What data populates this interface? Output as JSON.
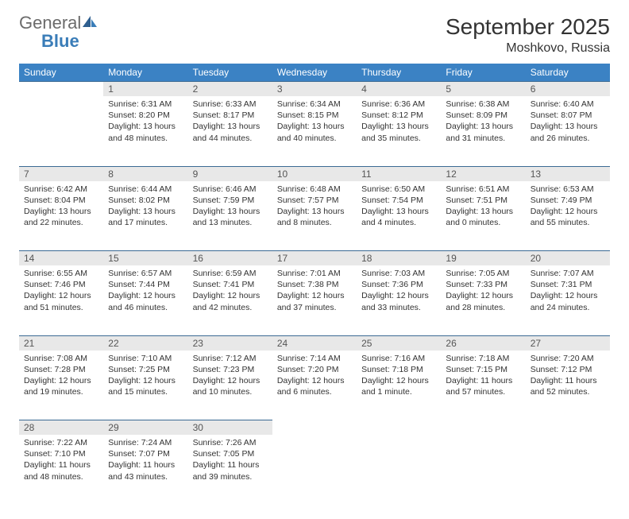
{
  "logo": {
    "general": "General",
    "blue": "Blue"
  },
  "title": "September 2025",
  "location": "Moshkovo, Russia",
  "dayNames": [
    "Sunday",
    "Monday",
    "Tuesday",
    "Wednesday",
    "Thursday",
    "Friday",
    "Saturday"
  ],
  "colors": {
    "header_bg": "#3b82c4",
    "header_text": "#ffffff",
    "daynum_bg": "#e8e8e8",
    "border": "#3b6a94",
    "logo_blue": "#3a7db8",
    "logo_gray": "#6b6b6b"
  },
  "weeks": [
    [
      {
        "n": "",
        "sr": "",
        "ss": "",
        "dl": ""
      },
      {
        "n": "1",
        "sr": "Sunrise: 6:31 AM",
        "ss": "Sunset: 8:20 PM",
        "dl": "Daylight: 13 hours and 48 minutes."
      },
      {
        "n": "2",
        "sr": "Sunrise: 6:33 AM",
        "ss": "Sunset: 8:17 PM",
        "dl": "Daylight: 13 hours and 44 minutes."
      },
      {
        "n": "3",
        "sr": "Sunrise: 6:34 AM",
        "ss": "Sunset: 8:15 PM",
        "dl": "Daylight: 13 hours and 40 minutes."
      },
      {
        "n": "4",
        "sr": "Sunrise: 6:36 AM",
        "ss": "Sunset: 8:12 PM",
        "dl": "Daylight: 13 hours and 35 minutes."
      },
      {
        "n": "5",
        "sr": "Sunrise: 6:38 AM",
        "ss": "Sunset: 8:09 PM",
        "dl": "Daylight: 13 hours and 31 minutes."
      },
      {
        "n": "6",
        "sr": "Sunrise: 6:40 AM",
        "ss": "Sunset: 8:07 PM",
        "dl": "Daylight: 13 hours and 26 minutes."
      }
    ],
    [
      {
        "n": "7",
        "sr": "Sunrise: 6:42 AM",
        "ss": "Sunset: 8:04 PM",
        "dl": "Daylight: 13 hours and 22 minutes."
      },
      {
        "n": "8",
        "sr": "Sunrise: 6:44 AM",
        "ss": "Sunset: 8:02 PM",
        "dl": "Daylight: 13 hours and 17 minutes."
      },
      {
        "n": "9",
        "sr": "Sunrise: 6:46 AM",
        "ss": "Sunset: 7:59 PM",
        "dl": "Daylight: 13 hours and 13 minutes."
      },
      {
        "n": "10",
        "sr": "Sunrise: 6:48 AM",
        "ss": "Sunset: 7:57 PM",
        "dl": "Daylight: 13 hours and 8 minutes."
      },
      {
        "n": "11",
        "sr": "Sunrise: 6:50 AM",
        "ss": "Sunset: 7:54 PM",
        "dl": "Daylight: 13 hours and 4 minutes."
      },
      {
        "n": "12",
        "sr": "Sunrise: 6:51 AM",
        "ss": "Sunset: 7:51 PM",
        "dl": "Daylight: 13 hours and 0 minutes."
      },
      {
        "n": "13",
        "sr": "Sunrise: 6:53 AM",
        "ss": "Sunset: 7:49 PM",
        "dl": "Daylight: 12 hours and 55 minutes."
      }
    ],
    [
      {
        "n": "14",
        "sr": "Sunrise: 6:55 AM",
        "ss": "Sunset: 7:46 PM",
        "dl": "Daylight: 12 hours and 51 minutes."
      },
      {
        "n": "15",
        "sr": "Sunrise: 6:57 AM",
        "ss": "Sunset: 7:44 PM",
        "dl": "Daylight: 12 hours and 46 minutes."
      },
      {
        "n": "16",
        "sr": "Sunrise: 6:59 AM",
        "ss": "Sunset: 7:41 PM",
        "dl": "Daylight: 12 hours and 42 minutes."
      },
      {
        "n": "17",
        "sr": "Sunrise: 7:01 AM",
        "ss": "Sunset: 7:38 PM",
        "dl": "Daylight: 12 hours and 37 minutes."
      },
      {
        "n": "18",
        "sr": "Sunrise: 7:03 AM",
        "ss": "Sunset: 7:36 PM",
        "dl": "Daylight: 12 hours and 33 minutes."
      },
      {
        "n": "19",
        "sr": "Sunrise: 7:05 AM",
        "ss": "Sunset: 7:33 PM",
        "dl": "Daylight: 12 hours and 28 minutes."
      },
      {
        "n": "20",
        "sr": "Sunrise: 7:07 AM",
        "ss": "Sunset: 7:31 PM",
        "dl": "Daylight: 12 hours and 24 minutes."
      }
    ],
    [
      {
        "n": "21",
        "sr": "Sunrise: 7:08 AM",
        "ss": "Sunset: 7:28 PM",
        "dl": "Daylight: 12 hours and 19 minutes."
      },
      {
        "n": "22",
        "sr": "Sunrise: 7:10 AM",
        "ss": "Sunset: 7:25 PM",
        "dl": "Daylight: 12 hours and 15 minutes."
      },
      {
        "n": "23",
        "sr": "Sunrise: 7:12 AM",
        "ss": "Sunset: 7:23 PM",
        "dl": "Daylight: 12 hours and 10 minutes."
      },
      {
        "n": "24",
        "sr": "Sunrise: 7:14 AM",
        "ss": "Sunset: 7:20 PM",
        "dl": "Daylight: 12 hours and 6 minutes."
      },
      {
        "n": "25",
        "sr": "Sunrise: 7:16 AM",
        "ss": "Sunset: 7:18 PM",
        "dl": "Daylight: 12 hours and 1 minute."
      },
      {
        "n": "26",
        "sr": "Sunrise: 7:18 AM",
        "ss": "Sunset: 7:15 PM",
        "dl": "Daylight: 11 hours and 57 minutes."
      },
      {
        "n": "27",
        "sr": "Sunrise: 7:20 AM",
        "ss": "Sunset: 7:12 PM",
        "dl": "Daylight: 11 hours and 52 minutes."
      }
    ],
    [
      {
        "n": "28",
        "sr": "Sunrise: 7:22 AM",
        "ss": "Sunset: 7:10 PM",
        "dl": "Daylight: 11 hours and 48 minutes."
      },
      {
        "n": "29",
        "sr": "Sunrise: 7:24 AM",
        "ss": "Sunset: 7:07 PM",
        "dl": "Daylight: 11 hours and 43 minutes."
      },
      {
        "n": "30",
        "sr": "Sunrise: 7:26 AM",
        "ss": "Sunset: 7:05 PM",
        "dl": "Daylight: 11 hours and 39 minutes."
      },
      {
        "n": "",
        "sr": "",
        "ss": "",
        "dl": ""
      },
      {
        "n": "",
        "sr": "",
        "ss": "",
        "dl": ""
      },
      {
        "n": "",
        "sr": "",
        "ss": "",
        "dl": ""
      },
      {
        "n": "",
        "sr": "",
        "ss": "",
        "dl": ""
      }
    ]
  ]
}
